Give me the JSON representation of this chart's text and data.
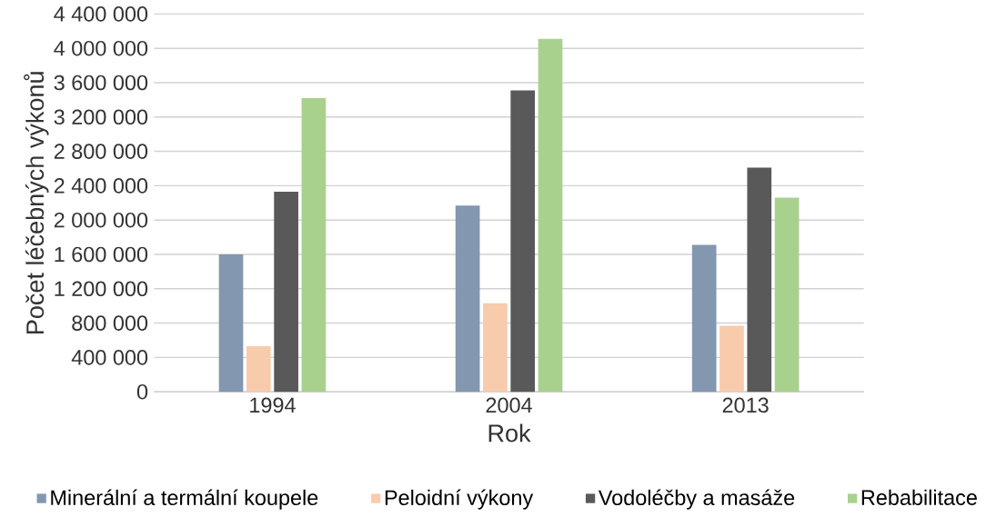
{
  "chart_data": {
    "type": "bar",
    "xlabel": "Rok",
    "ylabel": "Počet léčebných výkonů",
    "categories": [
      "1994",
      "2004",
      "2013"
    ],
    "series": [
      {
        "name": "Minerální a termální koupele",
        "color": "#8497b0",
        "values": [
          1600000,
          2170000,
          1710000
        ]
      },
      {
        "name": "Peloidní výkony",
        "color": "#f8cbad",
        "values": [
          530000,
          1030000,
          770000
        ]
      },
      {
        "name": "Vodoléčby a masáže",
        "color": "#595959",
        "values": [
          2330000,
          3510000,
          2610000
        ]
      },
      {
        "name": "Rebabilitace",
        "color": "#a9d18e",
        "values": [
          3420000,
          4110000,
          2260000
        ]
      }
    ],
    "ylim": [
      0,
      4400000
    ],
    "yticks": [
      {
        "value": 0,
        "label": "0"
      },
      {
        "value": 400000,
        "label": "400 000"
      },
      {
        "value": 800000,
        "label": "800 000"
      },
      {
        "value": 1200000,
        "label": "1 200 000"
      },
      {
        "value": 1600000,
        "label": "1 600 000"
      },
      {
        "value": 2000000,
        "label": "2 000 000"
      },
      {
        "value": 2400000,
        "label": "2 400 000"
      },
      {
        "value": 2800000,
        "label": "2 800 000"
      },
      {
        "value": 3200000,
        "label": "3 200 000"
      },
      {
        "value": 3600000,
        "label": "3 600 000"
      },
      {
        "value": 4000000,
        "label": "4 000 000"
      },
      {
        "value": 4400000,
        "label": "4 400 000"
      }
    ],
    "grid": "y",
    "legend": "bottom"
  }
}
